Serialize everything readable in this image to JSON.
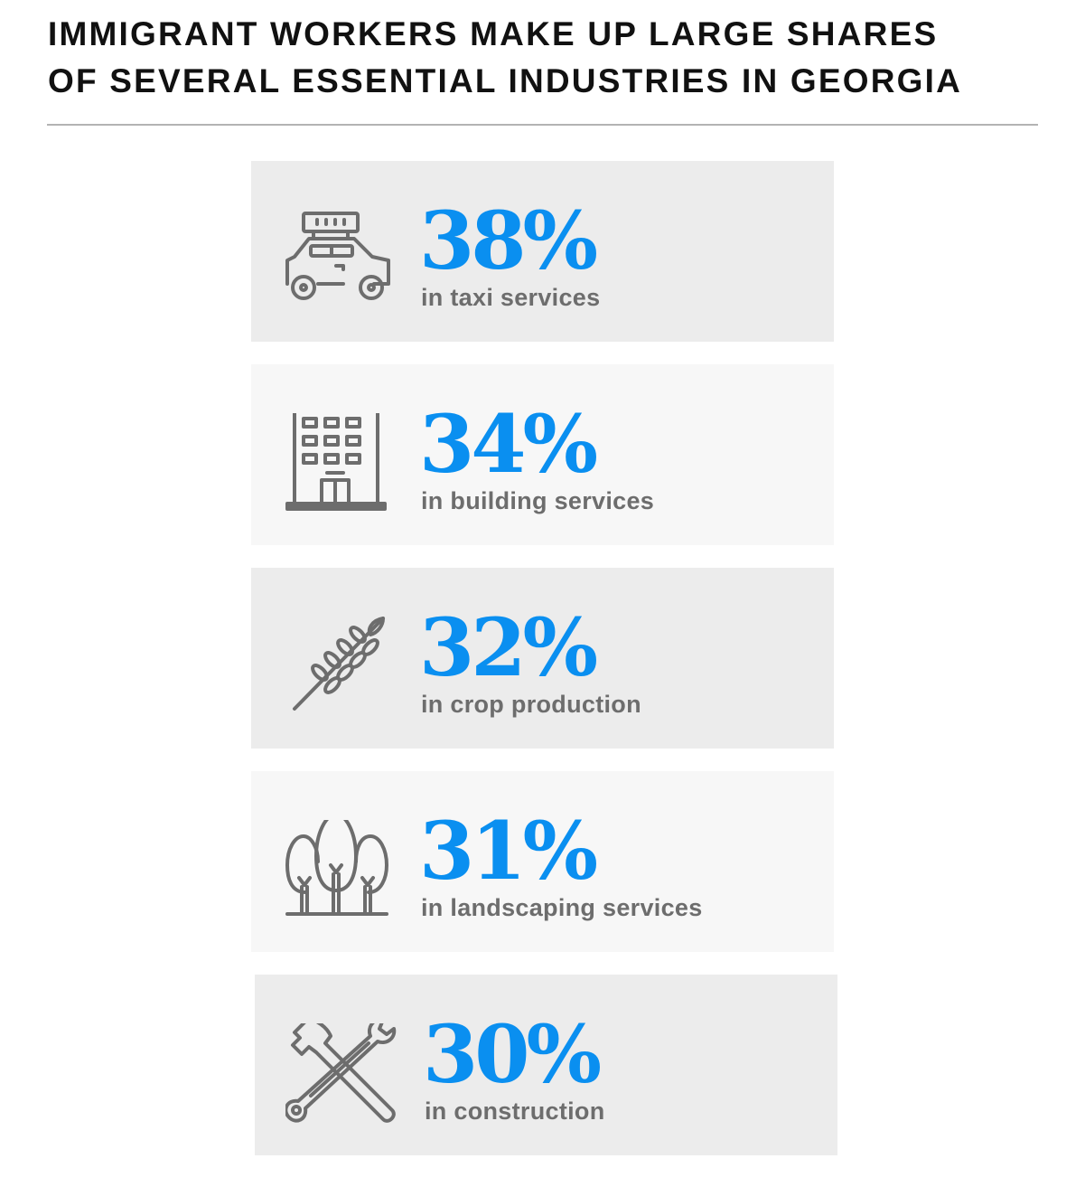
{
  "title_line1": "IMMIGRANT WORKERS MAKE UP LARGE SHARES",
  "title_line2": "OF SEVERAL ESSENTIAL INDUSTRIES IN GEORGIA",
  "colors": {
    "accent": "#0a8ff0",
    "label": "#6d6d6d"
  },
  "stats": [
    {
      "value": "38%",
      "label": "in taxi services",
      "icon": "taxi-icon"
    },
    {
      "value": "34%",
      "label": "in building services",
      "icon": "building-icon"
    },
    {
      "value": "32%",
      "label": "in crop production",
      "icon": "wheat-icon"
    },
    {
      "value": "31%",
      "label": "in landscaping services",
      "icon": "trees-icon"
    },
    {
      "value": "30%",
      "label": "in construction",
      "icon": "tools-icon"
    }
  ]
}
